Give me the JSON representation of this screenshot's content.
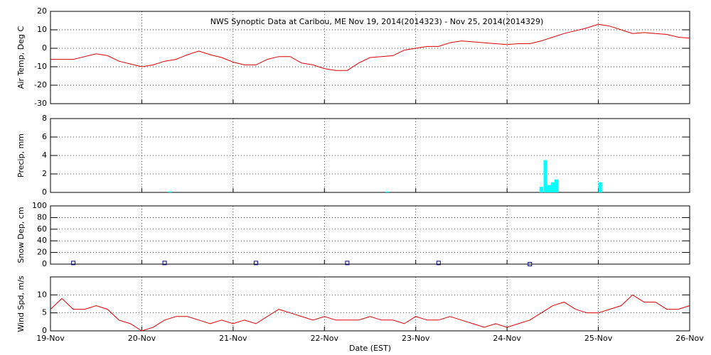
{
  "chart_data": [
    {
      "type": "line",
      "title": "NWS Synoptic Data at Caribou, ME   Nov 19, 2014(2014323) - Nov 25, 2014(2014329)",
      "y_label": "Air Temp, Deg C",
      "color": "#e00000",
      "xlim": [
        0,
        7
      ],
      "xticks": [
        1,
        2,
        3,
        4,
        5,
        6
      ],
      "ylim": [
        -30,
        20
      ],
      "yticks": [
        -30,
        -20,
        -10,
        0,
        10,
        20
      ],
      "grid": true,
      "x": [
        0,
        0.125,
        0.25,
        0.375,
        0.5,
        0.625,
        0.75,
        0.875,
        1,
        1.125,
        1.25,
        1.375,
        1.5,
        1.625,
        1.75,
        1.875,
        2,
        2.125,
        2.25,
        2.375,
        2.5,
        2.625,
        2.75,
        2.875,
        3,
        3.125,
        3.25,
        3.375,
        3.5,
        3.625,
        3.75,
        3.875,
        4,
        4.125,
        4.25,
        4.375,
        4.5,
        4.625,
        4.75,
        4.875,
        5,
        5.125,
        5.25,
        5.375,
        5.5,
        5.625,
        5.75,
        5.875,
        6,
        6.125,
        6.25,
        6.375,
        6.5,
        6.625,
        6.75,
        6.875,
        7
      ],
      "values": [
        -6,
        -6,
        -6,
        -4.5,
        -3,
        -4,
        -7,
        -8.5,
        -10,
        -9,
        -7,
        -6,
        -3.5,
        -1.5,
        -3.5,
        -5,
        -7.5,
        -9,
        -9,
        -6,
        -4.5,
        -4.5,
        -8,
        -9,
        -11,
        -12,
        -12,
        -8,
        -5,
        -4.5,
        -4,
        -1,
        0,
        1,
        1,
        3,
        4,
        3.5,
        3,
        2.5,
        2,
        2.5,
        2.5,
        4,
        6,
        8,
        9.5,
        11,
        13,
        12,
        10,
        8,
        8.5,
        8,
        7.5,
        6,
        5.5
      ]
    },
    {
      "type": "bar",
      "y_label": "Precip, mm",
      "color": "#00ffff",
      "xlim": [
        0,
        7
      ],
      "xticks": [
        1,
        2,
        3,
        4,
        5,
        6
      ],
      "ylim": [
        0,
        8
      ],
      "yticks": [
        0,
        2,
        4,
        6,
        8
      ],
      "grid": true,
      "x": [
        1.31,
        3.69,
        5.375,
        5.42,
        5.46,
        5.5,
        5.54,
        6.02
      ],
      "values": [
        0.1,
        0.1,
        0.6,
        3.5,
        0.8,
        1.1,
        1.4,
        1.1
      ]
    },
    {
      "type": "scatter",
      "y_label": "Snow Dep, cm",
      "color": "#000080",
      "xlim": [
        0,
        7
      ],
      "xticks": [
        1,
        2,
        3,
        4,
        5,
        6
      ],
      "ylim": [
        0,
        100
      ],
      "yticks": [
        0,
        20,
        40,
        60,
        80,
        100
      ],
      "grid": true,
      "x": [
        0.25,
        1.25,
        2.25,
        3.25,
        4.25,
        5.25
      ],
      "values": [
        2,
        2,
        2,
        2,
        2,
        0
      ]
    },
    {
      "type": "line",
      "y_label": "Wind Spd, m/s",
      "x_label": "Date (EST)",
      "color": "#e00000",
      "xlim": [
        0,
        7
      ],
      "xticks": [
        {
          "value": 0,
          "label": "19-Nov"
        },
        {
          "value": 1,
          "label": "20-Nov"
        },
        {
          "value": 2,
          "label": "21-Nov"
        },
        {
          "value": 3,
          "label": "22-Nov"
        },
        {
          "value": 4,
          "label": "23-Nov"
        },
        {
          "value": 5,
          "label": "24-Nov"
        },
        {
          "value": 6,
          "label": "25-Nov"
        },
        {
          "value": 7,
          "label": "26-Nov"
        }
      ],
      "ylim": [
        0,
        15
      ],
      "yticks": [
        0,
        5,
        10
      ],
      "grid": true,
      "x": [
        0,
        0.125,
        0.25,
        0.375,
        0.5,
        0.625,
        0.75,
        0.875,
        1,
        1.125,
        1.25,
        1.375,
        1.5,
        1.625,
        1.75,
        1.875,
        2,
        2.125,
        2.25,
        2.375,
        2.5,
        2.625,
        2.75,
        2.875,
        3,
        3.125,
        3.25,
        3.375,
        3.5,
        3.625,
        3.75,
        3.875,
        4,
        4.125,
        4.25,
        4.375,
        4.5,
        4.625,
        4.75,
        4.875,
        5,
        5.125,
        5.25,
        5.375,
        5.5,
        5.625,
        5.75,
        5.875,
        6,
        6.125,
        6.25,
        6.375,
        6.5,
        6.625,
        6.75,
        6.875,
        7
      ],
      "values": [
        6,
        9,
        6,
        6,
        7,
        6,
        3,
        2,
        0,
        1,
        3,
        4,
        4,
        3,
        2,
        3,
        2,
        3,
        2,
        4,
        6,
        5,
        4,
        3,
        4,
        3,
        3,
        3,
        4,
        3,
        3,
        2,
        4,
        3,
        3,
        4,
        3,
        2,
        1,
        2,
        1,
        2,
        3,
        5,
        7,
        8,
        6,
        5,
        5,
        6,
        7,
        10,
        8,
        8,
        6,
        6,
        7
      ]
    }
  ]
}
